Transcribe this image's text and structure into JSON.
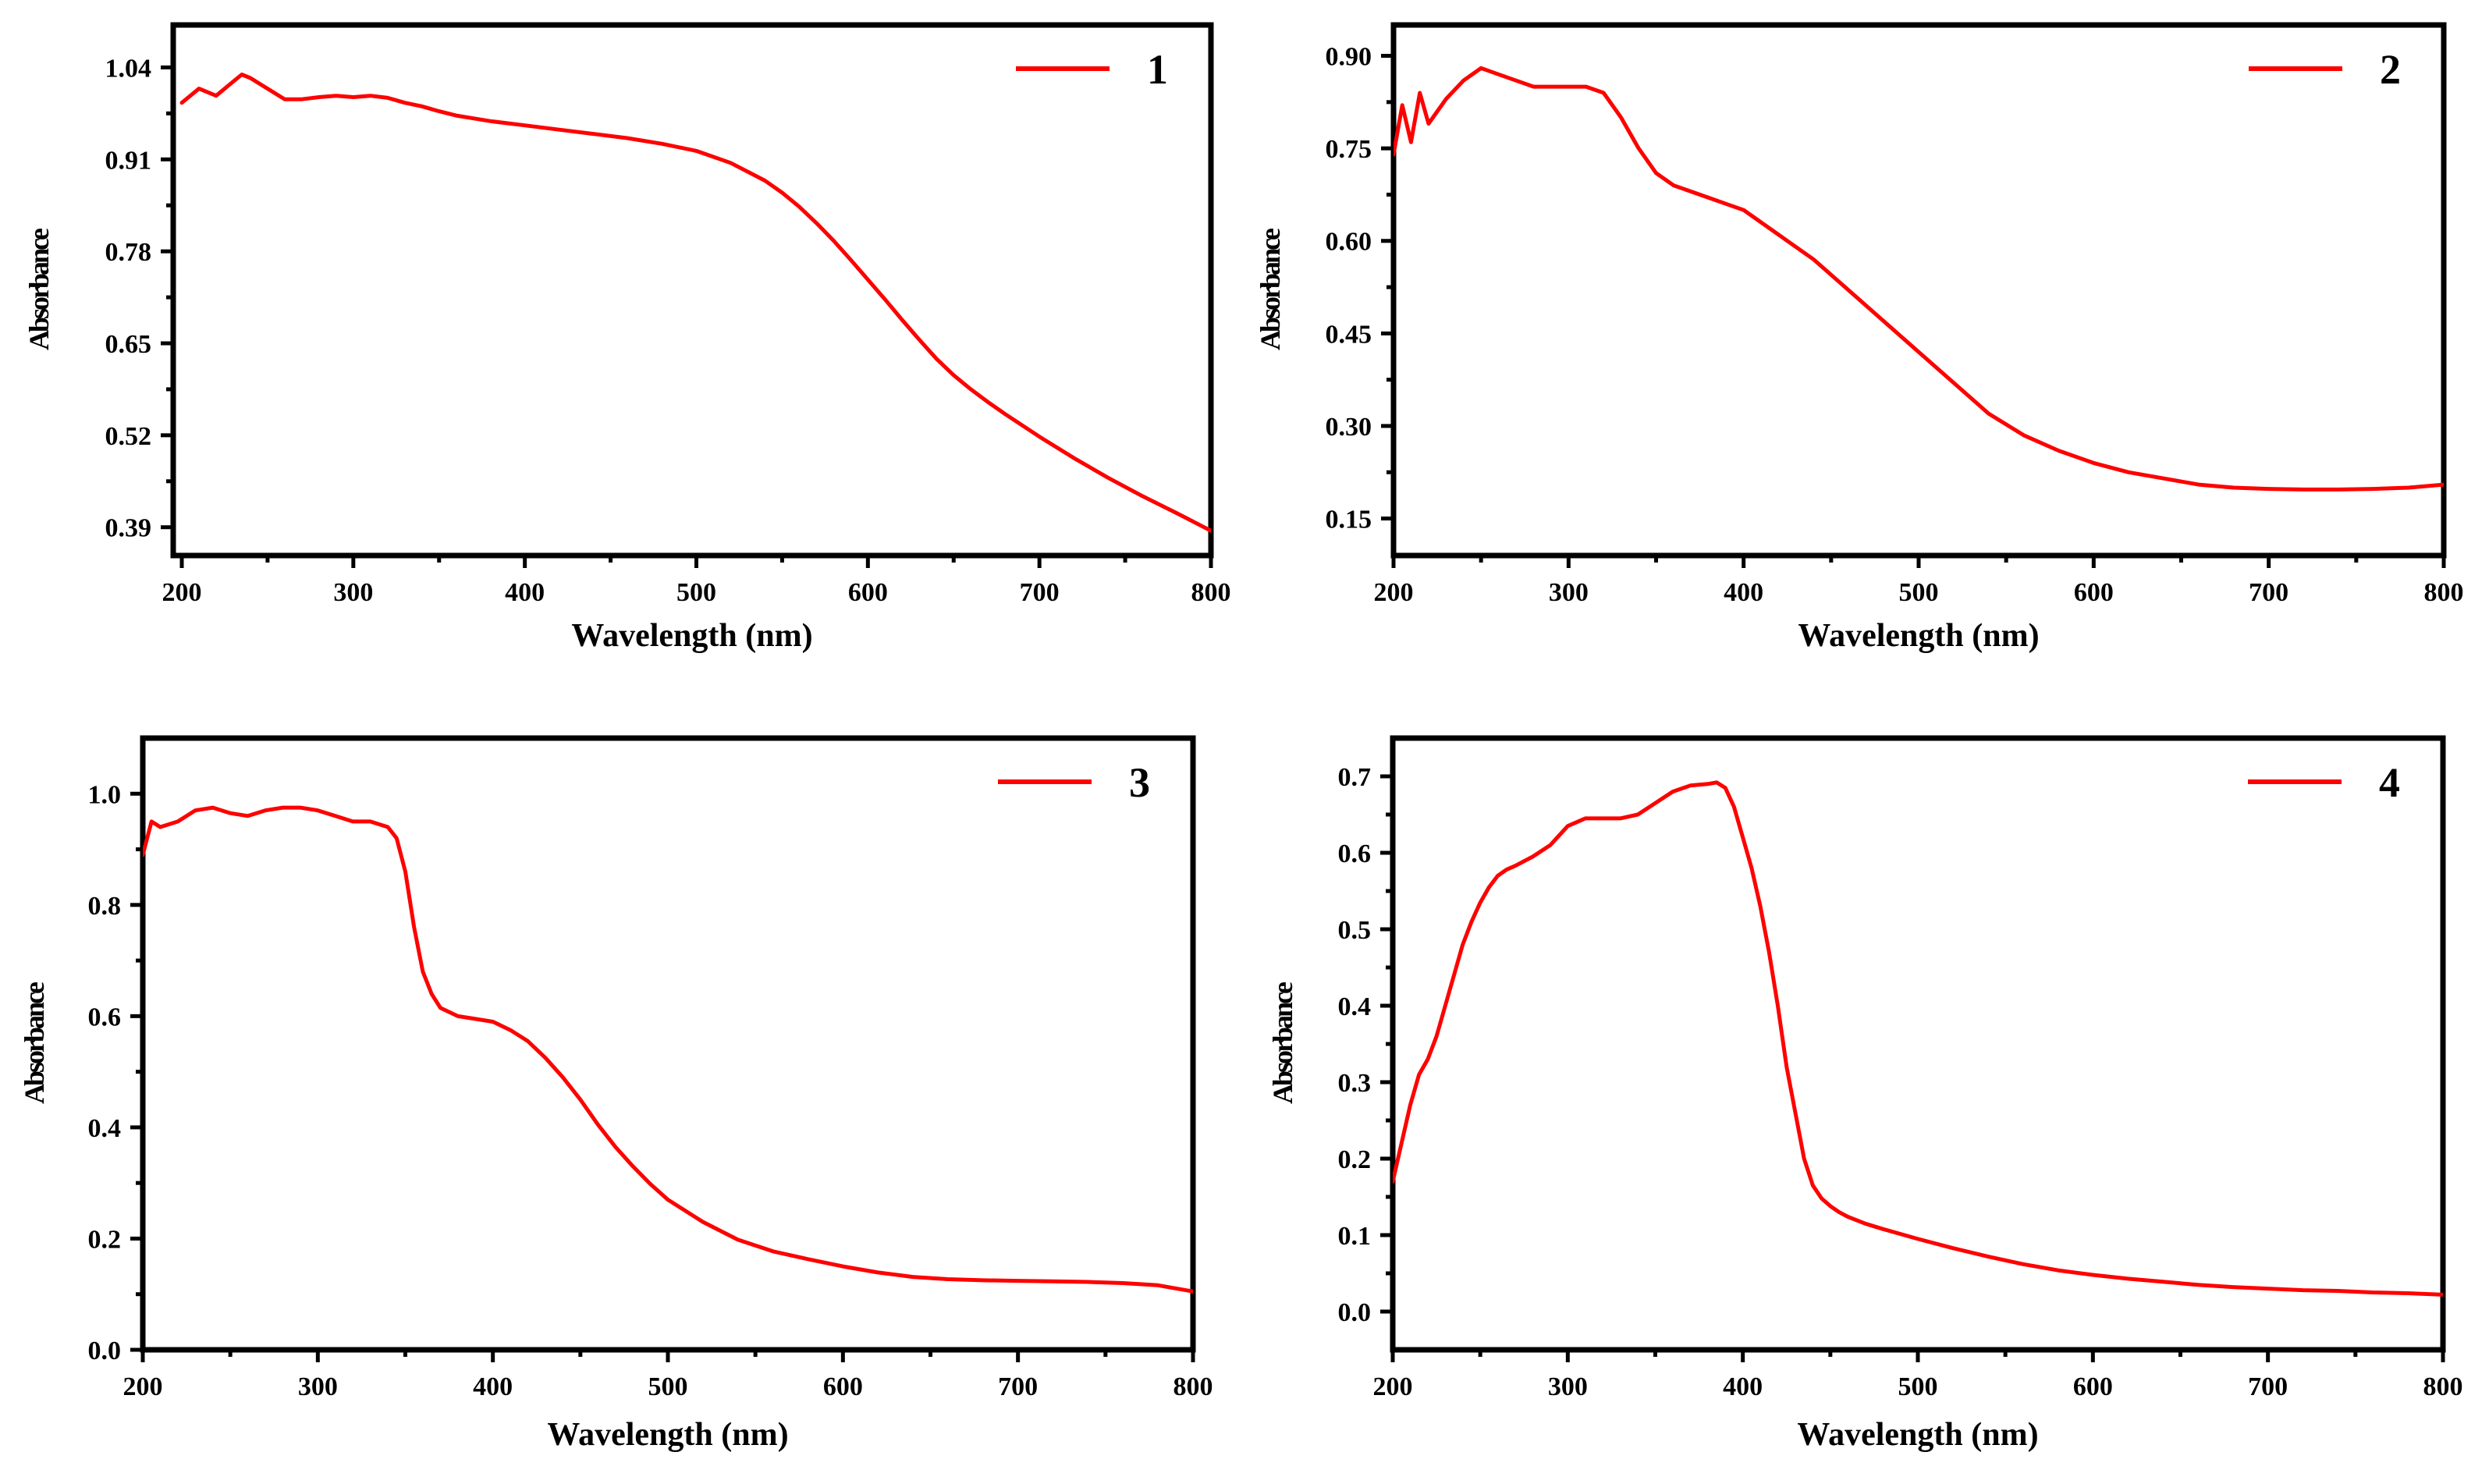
{
  "colors": {
    "series": "#ff0000",
    "axis": "#000000",
    "background": "#ffffff"
  },
  "chart_data": [
    {
      "type": "line",
      "panel": "top-left",
      "xlabel": "Wavelength (nm)",
      "ylabel": "Absorbance",
      "xlim": [
        195,
        800
      ],
      "ylim": [
        0.35,
        1.1
      ],
      "xticks": [
        200,
        300,
        400,
        500,
        600,
        700,
        800
      ],
      "yticks": [
        0.39,
        0.52,
        0.65,
        0.78,
        0.91,
        1.04
      ],
      "ytick_labels": [
        "0.39",
        "0.52",
        "0.65",
        "0.78",
        "0.91",
        "1.04"
      ],
      "legend_position": "top-right",
      "series": [
        {
          "name": "1",
          "x": [
            200,
            210,
            220,
            230,
            235,
            240,
            250,
            260,
            270,
            280,
            290,
            300,
            310,
            320,
            330,
            340,
            350,
            360,
            370,
            380,
            400,
            420,
            440,
            460,
            480,
            500,
            520,
            540,
            550,
            560,
            570,
            580,
            590,
            600,
            610,
            620,
            630,
            640,
            650,
            660,
            670,
            680,
            700,
            720,
            740,
            760,
            780,
            800
          ],
          "y": [
            0.99,
            1.01,
            1.0,
            1.02,
            1.03,
            1.025,
            1.01,
            0.995,
            0.995,
            0.998,
            1.0,
            0.998,
            1.0,
            0.997,
            0.99,
            0.985,
            0.978,
            0.972,
            0.968,
            0.964,
            0.958,
            0.952,
            0.946,
            0.94,
            0.932,
            0.922,
            0.905,
            0.88,
            0.863,
            0.843,
            0.82,
            0.795,
            0.768,
            0.74,
            0.712,
            0.683,
            0.655,
            0.628,
            0.605,
            0.585,
            0.567,
            0.55,
            0.518,
            0.488,
            0.46,
            0.434,
            0.41,
            0.385
          ]
        }
      ]
    },
    {
      "type": "line",
      "panel": "top-right",
      "xlabel": "Wavelength (nm)",
      "ylabel": "Absorbance",
      "xlim": [
        200,
        800
      ],
      "ylim": [
        0.09,
        0.95
      ],
      "xticks": [
        200,
        300,
        400,
        500,
        600,
        700,
        800
      ],
      "yticks": [
        0.15,
        0.3,
        0.45,
        0.6,
        0.75,
        0.9
      ],
      "ytick_labels": [
        "0.15",
        "0.30",
        "0.45",
        "0.60",
        "0.75",
        "0.90"
      ],
      "legend_position": "top-right",
      "series": [
        {
          "name": "2",
          "x": [
            200,
            205,
            210,
            215,
            220,
            230,
            240,
            250,
            260,
            270,
            280,
            290,
            300,
            310,
            320,
            330,
            340,
            350,
            360,
            370,
            380,
            390,
            400,
            420,
            440,
            460,
            480,
            500,
            520,
            540,
            560,
            580,
            600,
            620,
            640,
            660,
            680,
            700,
            720,
            740,
            760,
            780,
            800
          ],
          "y": [
            0.74,
            0.82,
            0.76,
            0.84,
            0.79,
            0.83,
            0.86,
            0.88,
            0.87,
            0.86,
            0.85,
            0.85,
            0.85,
            0.85,
            0.84,
            0.8,
            0.75,
            0.71,
            0.69,
            0.68,
            0.67,
            0.66,
            0.65,
            0.61,
            0.57,
            0.52,
            0.47,
            0.42,
            0.37,
            0.32,
            0.285,
            0.26,
            0.24,
            0.225,
            0.215,
            0.205,
            0.2,
            0.198,
            0.197,
            0.197,
            0.198,
            0.2,
            0.205
          ]
        }
      ]
    },
    {
      "type": "line",
      "panel": "bottom-left",
      "xlabel": "Wavelength (nm)",
      "ylabel": "Absorbance",
      "xlim": [
        200,
        800
      ],
      "ylim": [
        0.0,
        1.1
      ],
      "xticks": [
        200,
        300,
        400,
        500,
        600,
        700,
        800
      ],
      "yticks": [
        0.0,
        0.2,
        0.4,
        0.6,
        0.8,
        1.0
      ],
      "ytick_labels": [
        "0.0",
        "0.2",
        "0.4",
        "0.6",
        "0.8",
        "1.0"
      ],
      "legend_position": "top-right",
      "series": [
        {
          "name": "3",
          "x": [
            200,
            205,
            210,
            220,
            230,
            240,
            250,
            260,
            270,
            280,
            290,
            300,
            310,
            320,
            330,
            340,
            345,
            350,
            355,
            360,
            365,
            370,
            380,
            390,
            400,
            410,
            420,
            430,
            440,
            450,
            460,
            470,
            480,
            490,
            500,
            520,
            540,
            560,
            580,
            600,
            620,
            640,
            660,
            680,
            700,
            720,
            740,
            760,
            780,
            800
          ],
          "y": [
            0.89,
            0.95,
            0.94,
            0.95,
            0.97,
            0.975,
            0.965,
            0.96,
            0.97,
            0.975,
            0.975,
            0.97,
            0.96,
            0.95,
            0.95,
            0.94,
            0.92,
            0.86,
            0.76,
            0.68,
            0.64,
            0.615,
            0.6,
            0.595,
            0.59,
            0.575,
            0.555,
            0.525,
            0.49,
            0.45,
            0.405,
            0.365,
            0.33,
            0.298,
            0.27,
            0.23,
            0.198,
            0.177,
            0.163,
            0.15,
            0.139,
            0.131,
            0.127,
            0.125,
            0.124,
            0.123,
            0.122,
            0.12,
            0.116,
            0.105
          ]
        }
      ]
    },
    {
      "type": "line",
      "panel": "bottom-right",
      "xlabel": "Wavelength (nm)",
      "ylabel": "Absorbance",
      "xlim": [
        200,
        800
      ],
      "ylim": [
        -0.05,
        0.75
      ],
      "xticks": [
        200,
        300,
        400,
        500,
        600,
        700,
        800
      ],
      "yticks": [
        0.0,
        0.1,
        0.2,
        0.3,
        0.4,
        0.5,
        0.6,
        0.7
      ],
      "ytick_labels": [
        "0.0",
        "0.1",
        "0.2",
        "0.3",
        "0.4",
        "0.5",
        "0.6",
        "0.7"
      ],
      "legend_position": "top-right",
      "series": [
        {
          "name": "4",
          "x": [
            200,
            205,
            210,
            215,
            220,
            225,
            230,
            235,
            240,
            245,
            250,
            255,
            260,
            265,
            270,
            280,
            290,
            300,
            310,
            320,
            330,
            340,
            350,
            360,
            370,
            380,
            385,
            390,
            395,
            400,
            405,
            410,
            415,
            420,
            425,
            430,
            435,
            440,
            445,
            450,
            455,
            460,
            470,
            480,
            500,
            520,
            540,
            560,
            580,
            600,
            620,
            640,
            660,
            680,
            700,
            720,
            740,
            760,
            780,
            800
          ],
          "y": [
            0.17,
            0.22,
            0.27,
            0.31,
            0.33,
            0.36,
            0.4,
            0.44,
            0.48,
            0.51,
            0.535,
            0.555,
            0.57,
            0.578,
            0.583,
            0.595,
            0.61,
            0.635,
            0.645,
            0.645,
            0.645,
            0.65,
            0.665,
            0.68,
            0.688,
            0.69,
            0.692,
            0.685,
            0.66,
            0.62,
            0.58,
            0.53,
            0.47,
            0.4,
            0.32,
            0.26,
            0.2,
            0.165,
            0.148,
            0.138,
            0.13,
            0.124,
            0.115,
            0.108,
            0.095,
            0.083,
            0.072,
            0.062,
            0.054,
            0.048,
            0.043,
            0.039,
            0.035,
            0.032,
            0.03,
            0.028,
            0.027,
            0.025,
            0.024,
            0.022
          ]
        }
      ]
    }
  ]
}
